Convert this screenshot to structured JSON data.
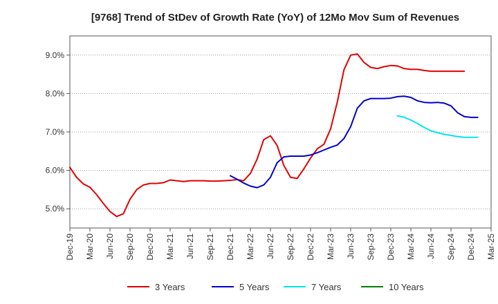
{
  "chart_data": {
    "type": "line",
    "title": "[9768]  Trend of StDev of Growth Rate (YoY) of 12Mo Mov Sum of Revenues",
    "xlabel": "",
    "ylabel": "",
    "ylim": [
      4.5,
      9.5
    ],
    "yticks": [
      5.0,
      6.0,
      7.0,
      8.0,
      9.0
    ],
    "ytick_labels": [
      "5.0%",
      "6.0%",
      "7.0%",
      "8.0%",
      "9.0%"
    ],
    "x_start": "Dec-19",
    "x_months": 63,
    "xtick_labels": [
      "Dec-19",
      "Mar-20",
      "Jun-20",
      "Sep-20",
      "Dec-20",
      "Mar-21",
      "Jun-21",
      "Sep-21",
      "Dec-21",
      "Mar-22",
      "Jun-22",
      "Sep-22",
      "Dec-22",
      "Mar-23",
      "Jun-23",
      "Sep-23",
      "Dec-23",
      "Mar-24",
      "Jun-24",
      "Sep-24",
      "Dec-24",
      "Mar-25"
    ],
    "grid": "horizontal dotted",
    "legend_position": "bottom",
    "series": [
      {
        "name": "3 Years",
        "color": "#e00000",
        "start_index": 0,
        "values": [
          6.08,
          5.82,
          5.65,
          5.56,
          5.37,
          5.14,
          4.93,
          4.8,
          4.87,
          5.25,
          5.5,
          5.62,
          5.66,
          5.66,
          5.68,
          5.75,
          5.73,
          5.71,
          5.73,
          5.73,
          5.73,
          5.72,
          5.72,
          5.73,
          5.74,
          5.76,
          5.73,
          5.92,
          6.29,
          6.8,
          6.9,
          6.65,
          6.13,
          5.82,
          5.79,
          6.04,
          6.32,
          6.56,
          6.68,
          7.08,
          7.78,
          8.62,
          9.0,
          9.03,
          8.81,
          8.68,
          8.65,
          8.7,
          8.73,
          8.72,
          8.65,
          8.63,
          8.63,
          8.6,
          8.58,
          8.58,
          8.58,
          8.58,
          8.58,
          8.58
        ]
      },
      {
        "name": "5 Years",
        "color": "#0000cc",
        "start_index": 24,
        "values": [
          5.86,
          5.77,
          5.67,
          5.59,
          5.55,
          5.62,
          5.82,
          6.2,
          6.35,
          6.37,
          6.37,
          6.37,
          6.4,
          6.46,
          6.53,
          6.6,
          6.66,
          6.83,
          7.14,
          7.62,
          7.81,
          7.87,
          7.87,
          7.87,
          7.88,
          7.92,
          7.93,
          7.9,
          7.81,
          7.77,
          7.76,
          7.77,
          7.75,
          7.68,
          7.5,
          7.4,
          7.38,
          7.38
        ]
      },
      {
        "name": "7 Years",
        "color": "#00e5ee",
        "start_index": 49,
        "values": [
          7.42,
          7.38,
          7.31,
          7.22,
          7.12,
          7.03,
          6.98,
          6.94,
          6.91,
          6.88,
          6.86,
          6.86,
          6.86
        ]
      },
      {
        "name": "10 Years",
        "color": "#008000",
        "start_index": null,
        "values": []
      }
    ]
  }
}
